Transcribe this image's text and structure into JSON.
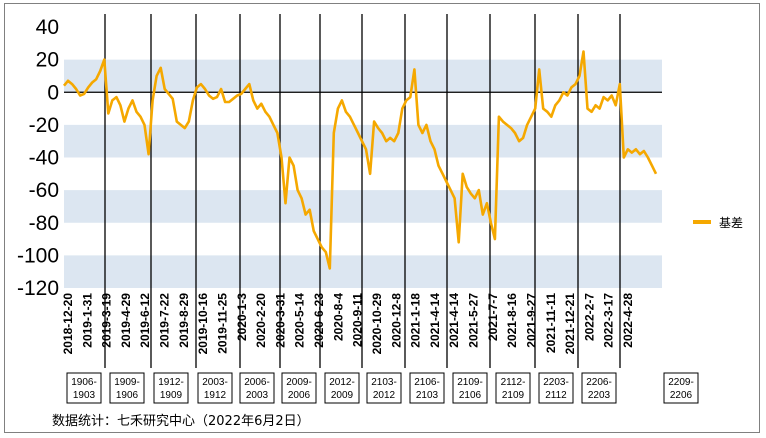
{
  "chart_data": {
    "type": "line",
    "title": "",
    "xlabel": "",
    "ylabel": "",
    "ylim": [
      -120,
      40
    ],
    "yticks": [
      40,
      20,
      0,
      -20,
      -40,
      -60,
      -80,
      -100,
      -120
    ],
    "grid": "alternating horizontal bands",
    "legend_position": "right",
    "x_tick_labels": [
      "2018-12-20",
      "2019-1-31",
      "2019-3-19",
      "2019-4-29",
      "2019-6-12",
      "2019-7-22",
      "2019-8-29",
      "2019-10-16",
      "2019-11-25",
      "2020-1-3",
      "2020-2-20",
      "2020-3-31",
      "2020-5-14",
      "2020-6-23",
      "2020-8-4",
      "2020-9-11",
      "2020-10-29",
      "2020-12-8",
      "2021-1-18",
      "2021-4-14",
      "2021-4-14",
      "2021-5-27",
      "2021-7-7",
      "2021-8-16",
      "2021-9-27",
      "2021-11-11",
      "2021-12-21",
      "2022-2-7",
      "2022-3-17",
      "2022-4-28"
    ],
    "contract_periods": [
      "1906-1903",
      "1909-1906",
      "1912-1909",
      "2003-1912",
      "2006-2003",
      "2009-2006",
      "2012-2009",
      "2103-2012",
      "2106-2103",
      "2109-2106",
      "2112-2109",
      "2203-2112",
      "2206-2203",
      "2209-2206"
    ],
    "series": [
      {
        "name": "基差",
        "color": "#F5A800",
        "values": [
          4,
          7,
          5,
          2,
          -2,
          -1,
          3,
          6,
          8,
          13,
          20,
          -13,
          -5,
          -3,
          -8,
          -18,
          -10,
          -5,
          -12,
          -15,
          -20,
          -38,
          -5,
          10,
          15,
          2,
          -1,
          -4,
          -18,
          -20,
          -22,
          -18,
          -5,
          3,
          5,
          2,
          -2,
          -4,
          -3,
          2,
          -6,
          -6,
          -4,
          -2,
          -1,
          2,
          5,
          -5,
          -10,
          -7,
          -12,
          -15,
          -20,
          -25,
          -40,
          -68,
          -40,
          -45,
          -60,
          -65,
          -75,
          -72,
          -85,
          -90,
          -95,
          -98,
          -108,
          -25,
          -10,
          -5,
          -12,
          -15,
          -20,
          -25,
          -30,
          -35,
          -50,
          -18,
          -22,
          -25,
          -30,
          -28,
          -30,
          -25,
          -10,
          -5,
          -3,
          14,
          -20,
          -25,
          -20,
          -30,
          -35,
          -45,
          -50,
          -55,
          -60,
          -65,
          -92,
          -50,
          -58,
          -62,
          -65,
          -60,
          -75,
          -68,
          -80,
          -90,
          -15,
          -18,
          -20,
          -22,
          -25,
          -30,
          -28,
          -20,
          -15,
          -10,
          14,
          -10,
          -12,
          -15,
          -8,
          -5,
          0,
          -2,
          3,
          5,
          10,
          25,
          -10,
          -12,
          -8,
          -10,
          -3,
          -5,
          -2,
          -8,
          5,
          -40,
          -35,
          -37,
          -35,
          -38,
          -36,
          -40,
          -45,
          -50
        ]
      }
    ]
  },
  "source_note": "数据统计：七禾研究中心（2022年6月2日）"
}
